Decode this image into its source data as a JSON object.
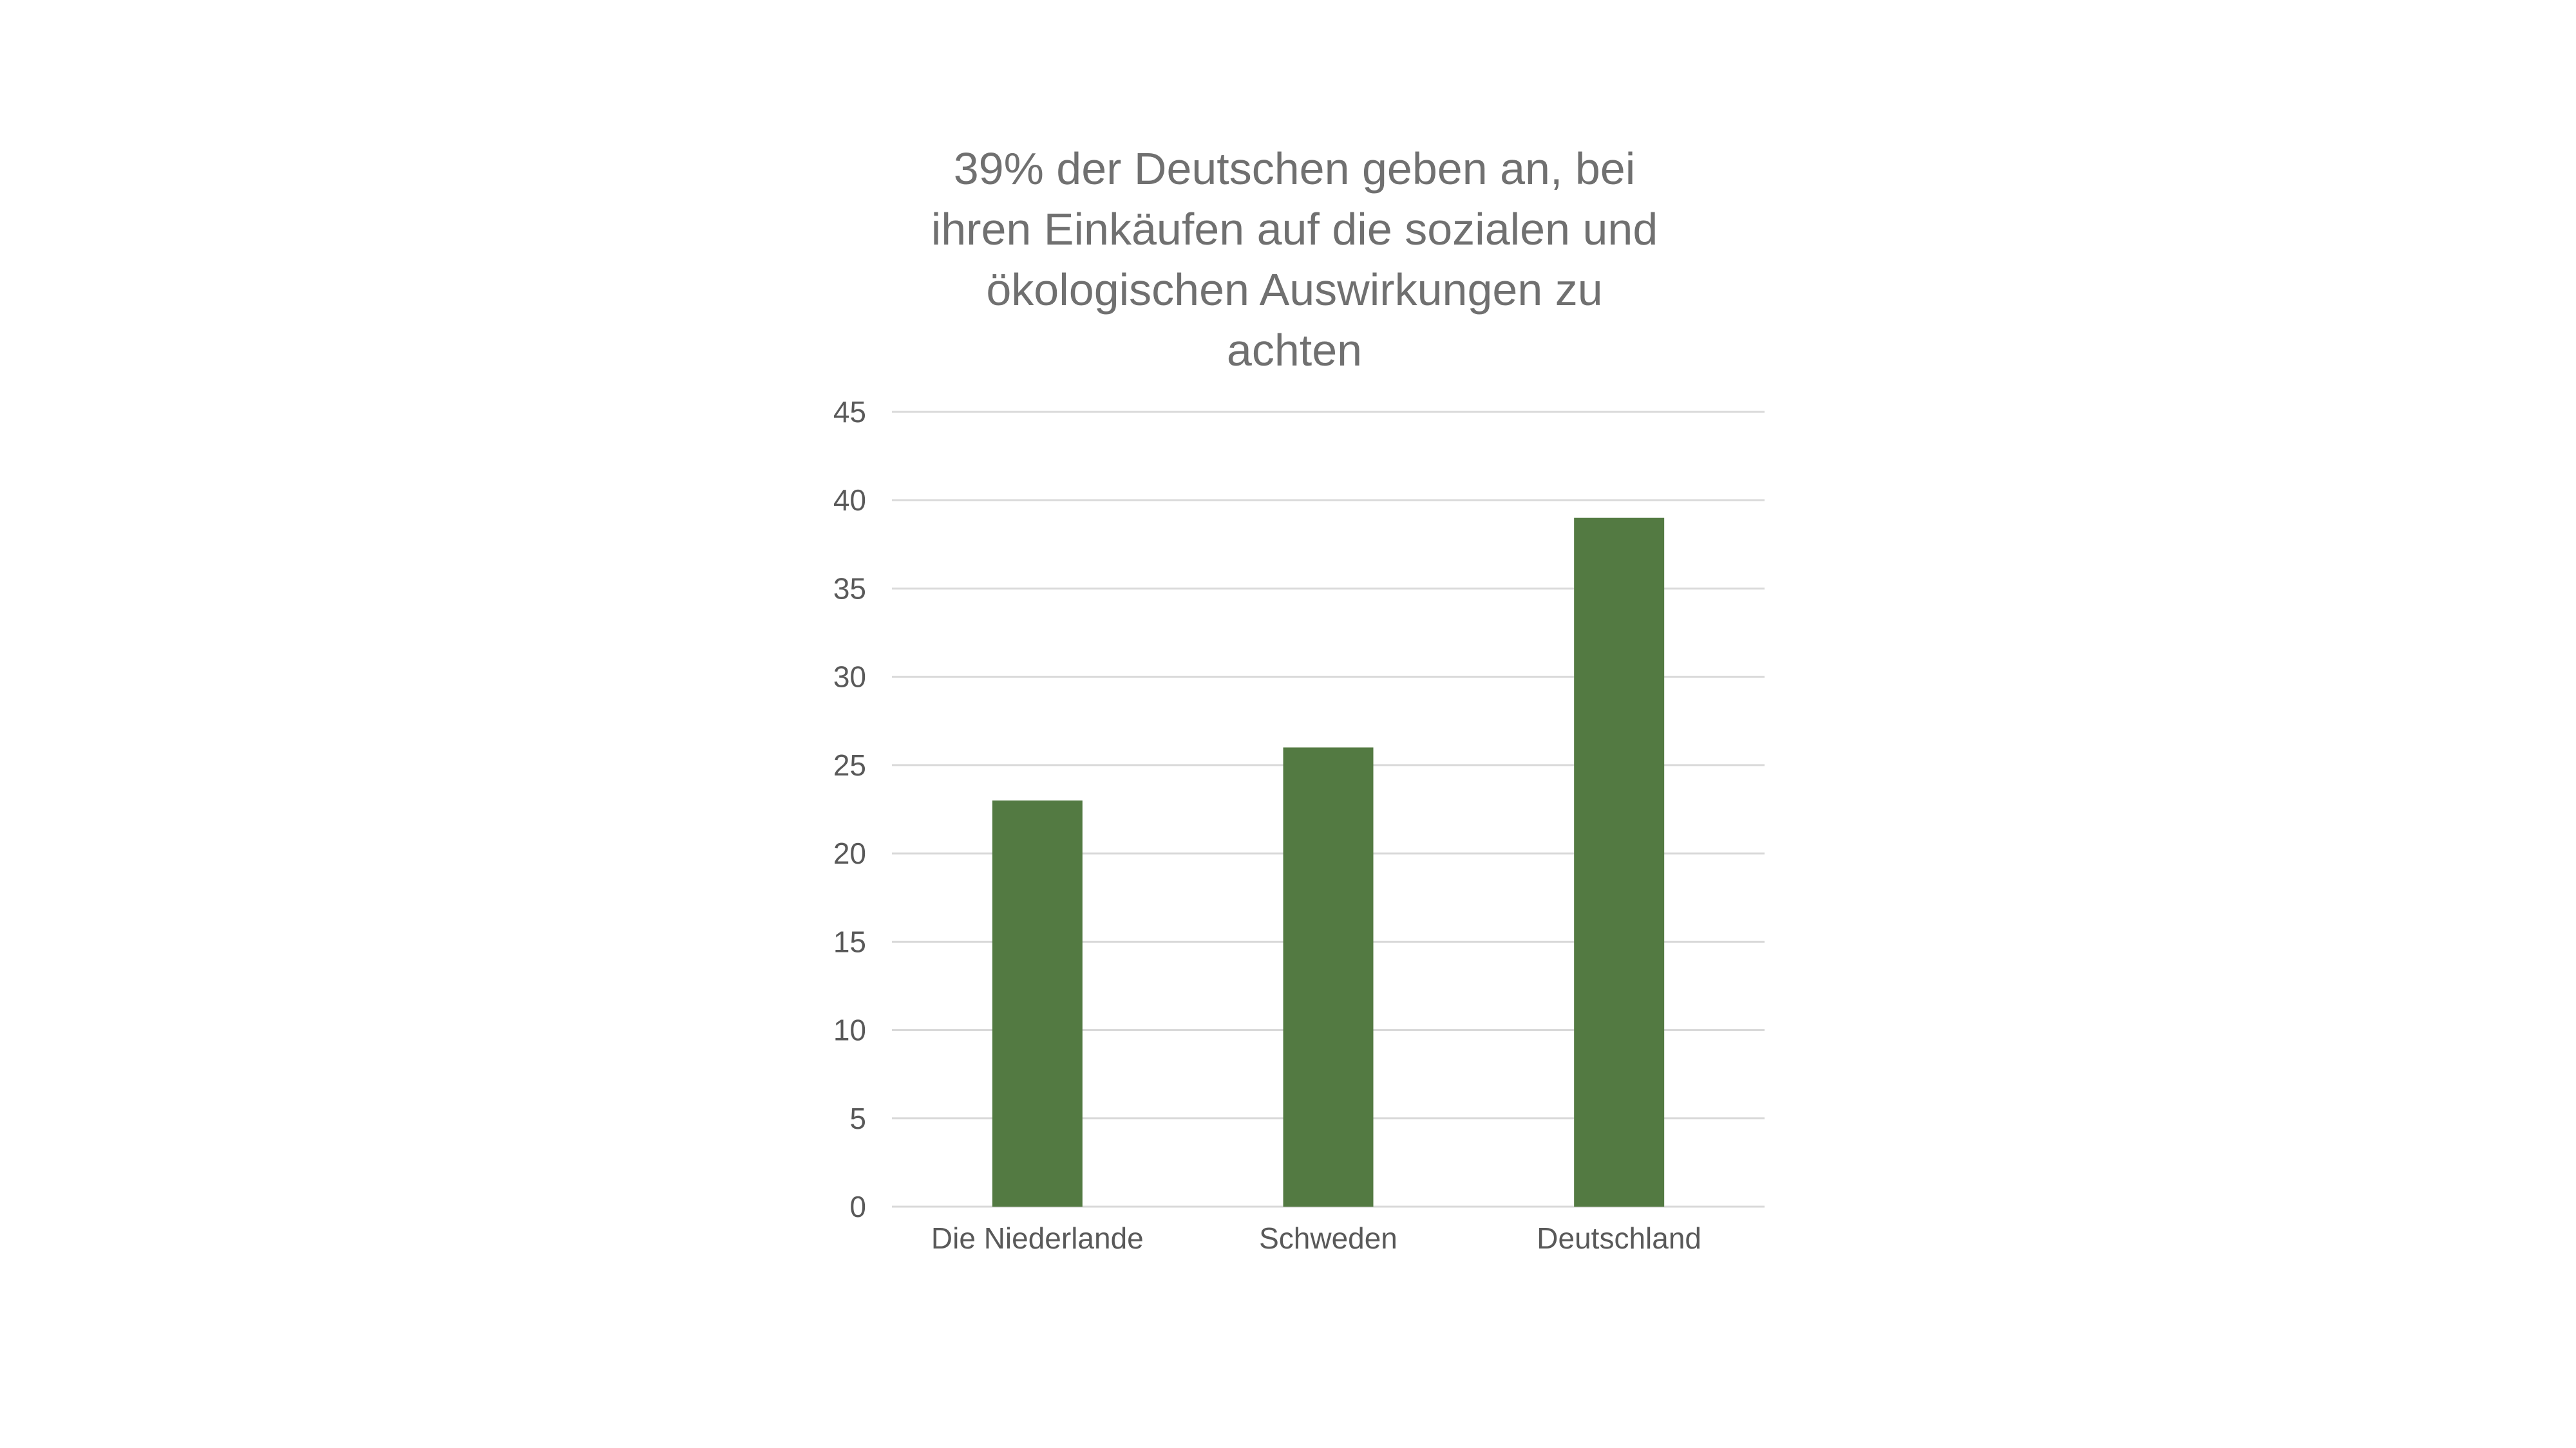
{
  "chart_data": {
    "type": "bar",
    "title": "39% der Deutschen geben an, bei ihren Einkäufen auf die sozialen und ökologischen Auswirkungen zu achten",
    "title_lines": [
      "39% der Deutschen geben an, bei",
      "ihren Einkäufen auf die sozialen und",
      "ökologischen Auswirkungen zu",
      "achten"
    ],
    "categories": [
      "Die Niederlande",
      "Schweden",
      "Deutschland"
    ],
    "values": [
      23,
      26,
      39
    ],
    "xlabel": "",
    "ylabel": "",
    "ylim": [
      0,
      45
    ],
    "yticks": [
      0,
      5,
      10,
      15,
      20,
      25,
      30,
      35,
      40,
      45
    ],
    "grid": true,
    "legend": "none",
    "colors": {
      "bar": "#537A42",
      "grid": "#D9D9D9",
      "text": "#595959",
      "title": "#707070"
    }
  }
}
